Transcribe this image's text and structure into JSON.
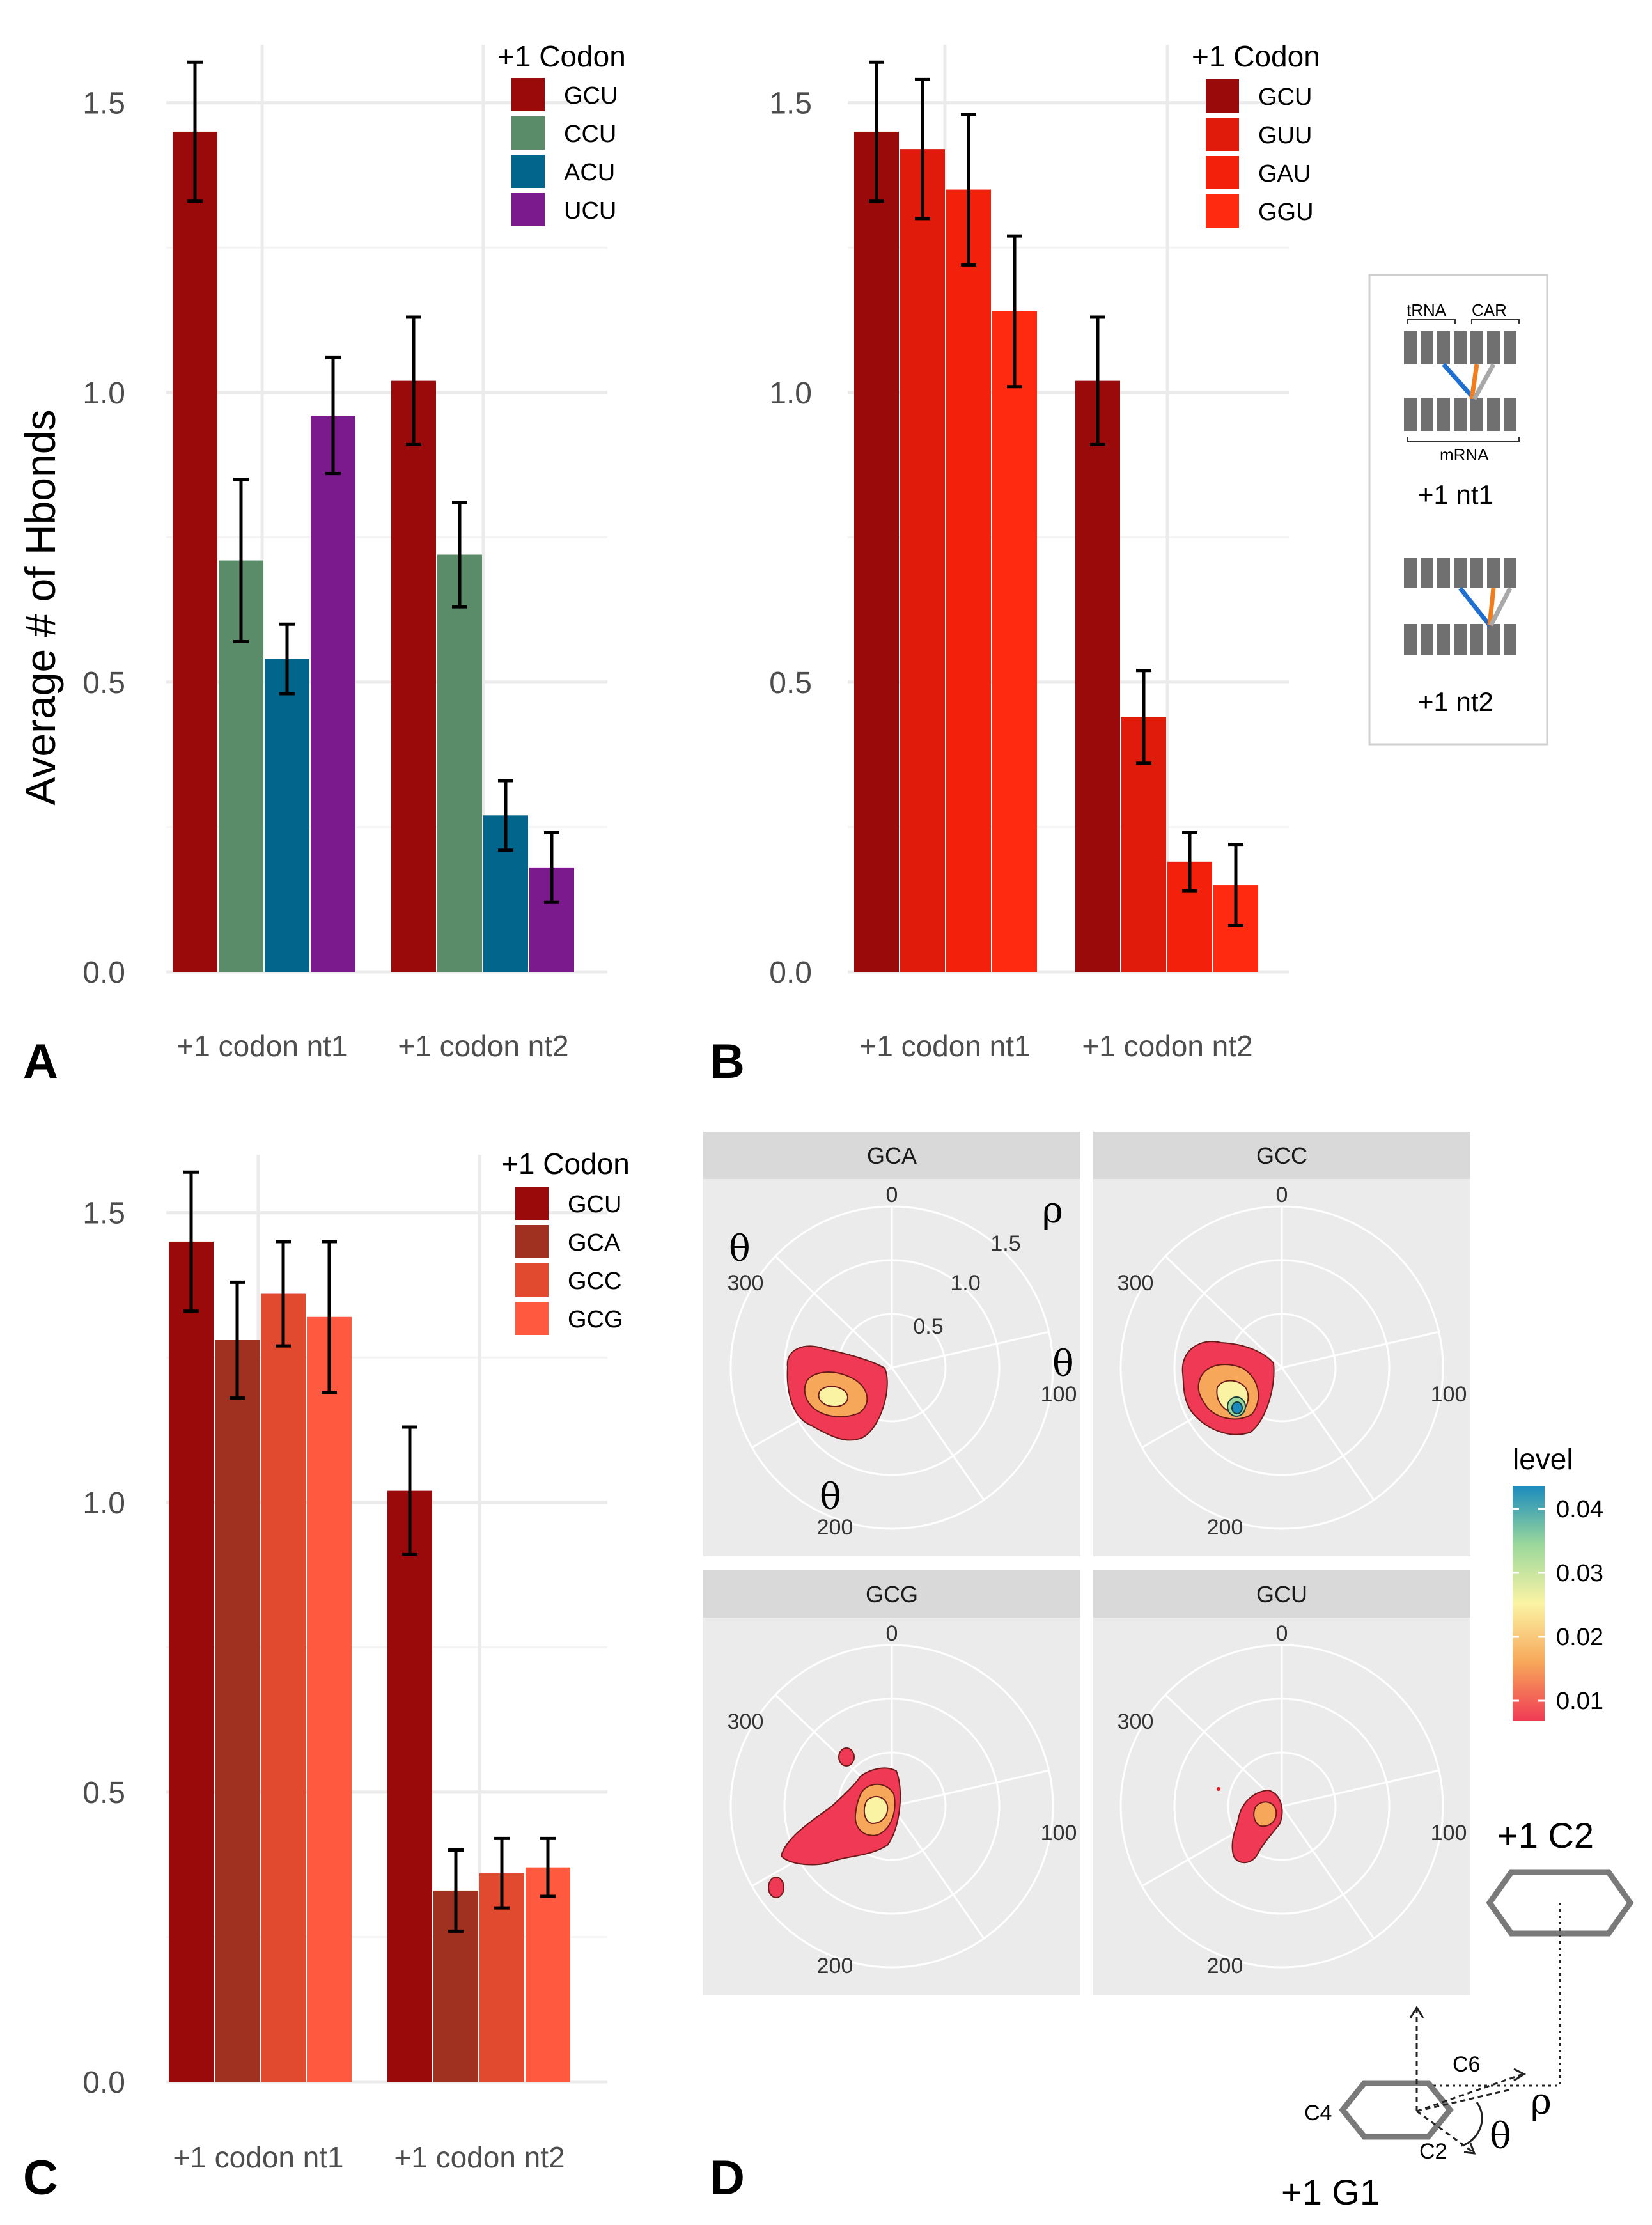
{
  "figure": {
    "ylabel": "Average # of Hbonds",
    "panel_letters": [
      "A",
      "B",
      "C",
      "D"
    ]
  },
  "chart_data": [
    {
      "panel": "A",
      "type": "bar",
      "legend_title": "+1 Codon",
      "categories": [
        "+1 codon nt1",
        "+1 codon nt2"
      ],
      "ylabel": "Average # of Hbonds",
      "ylim": [
        0,
        1.6
      ],
      "yticks": [
        "0.0",
        "0.5",
        "1.0",
        "1.5"
      ],
      "series": [
        {
          "name": "GCU",
          "color": "#9b0a0a",
          "values": [
            1.45,
            1.02
          ],
          "err": [
            0.12,
            0.11
          ]
        },
        {
          "name": "CCU",
          "color": "#5a8c6a",
          "values": [
            0.71,
            0.72
          ],
          "err": [
            0.14,
            0.09
          ]
        },
        {
          "name": "ACU",
          "color": "#02658c",
          "values": [
            0.54,
            0.27
          ],
          "err": [
            0.06,
            0.06
          ]
        },
        {
          "name": "UCU",
          "color": "#7a1a8c",
          "values": [
            0.96,
            0.18
          ],
          "err": [
            0.1,
            0.06
          ]
        }
      ]
    },
    {
      "panel": "B",
      "type": "bar",
      "legend_title": "+1 Codon",
      "categories": [
        "+1 codon nt1",
        "+1 codon nt2"
      ],
      "ylim": [
        0,
        1.6
      ],
      "yticks": [
        "0.0",
        "0.5",
        "1.0",
        "1.5"
      ],
      "series": [
        {
          "name": "GCU",
          "color": "#9b0a0a",
          "values": [
            1.45,
            1.02
          ],
          "err": [
            0.12,
            0.11
          ]
        },
        {
          "name": "GUU",
          "color": "#e01b0c",
          "values": [
            1.42,
            0.44
          ],
          "err": [
            0.12,
            0.08
          ]
        },
        {
          "name": "GAU",
          "color": "#f3200c",
          "values": [
            1.35,
            0.19
          ],
          "err": [
            0.13,
            0.05
          ]
        },
        {
          "name": "GGU",
          "color": "#ff2a0f",
          "values": [
            1.14,
            0.15
          ],
          "err": [
            0.13,
            0.07
          ]
        }
      ]
    },
    {
      "panel": "C",
      "type": "bar",
      "legend_title": "+1 Codon",
      "categories": [
        "+1 codon nt1",
        "+1 codon nt2"
      ],
      "ylim": [
        0,
        1.6
      ],
      "yticks": [
        "0.0",
        "0.5",
        "1.0",
        "1.5"
      ],
      "series": [
        {
          "name": "GCU",
          "color": "#9b0a0a",
          "values": [
            1.45,
            1.02
          ],
          "err": [
            0.12,
            0.11
          ]
        },
        {
          "name": "GCA",
          "color": "#a03020",
          "values": [
            1.28,
            0.33
          ],
          "err": [
            0.1,
            0.07
          ]
        },
        {
          "name": "GCC",
          "color": "#e24a30",
          "values": [
            1.36,
            0.36
          ],
          "err": [
            0.09,
            0.06
          ]
        },
        {
          "name": "GCG",
          "color": "#ff5a40",
          "values": [
            1.32,
            0.37
          ],
          "err": [
            0.13,
            0.05
          ]
        }
      ]
    },
    {
      "panel": "D",
      "type": "heatmap",
      "subtype": "polar density contour",
      "facets": [
        "GCA",
        "GCC",
        "GCG",
        "GCU"
      ],
      "theta_ticks": [
        "0",
        "100",
        "200",
        "300"
      ],
      "rho_ticks": [
        "0.5",
        "1.0",
        "1.5"
      ],
      "rho_label": "ρ",
      "theta_label": "θ",
      "legend_title": "level",
      "legend_ticks": [
        "0.04",
        "0.03",
        "0.02",
        "0.01"
      ],
      "level_range": [
        0.005,
        0.045
      ]
    }
  ],
  "schematic": {
    "trna_label": "tRNA",
    "car_label": "CAR",
    "mrna_label": "mRNA",
    "nt1_label": "+1 nt1",
    "nt2_label": "+1 nt2",
    "top_base": "+1 C2",
    "bottom_base": "+1 G1",
    "atoms": [
      "C6",
      "C4",
      "C2"
    ],
    "rho": "ρ",
    "theta": "θ"
  }
}
